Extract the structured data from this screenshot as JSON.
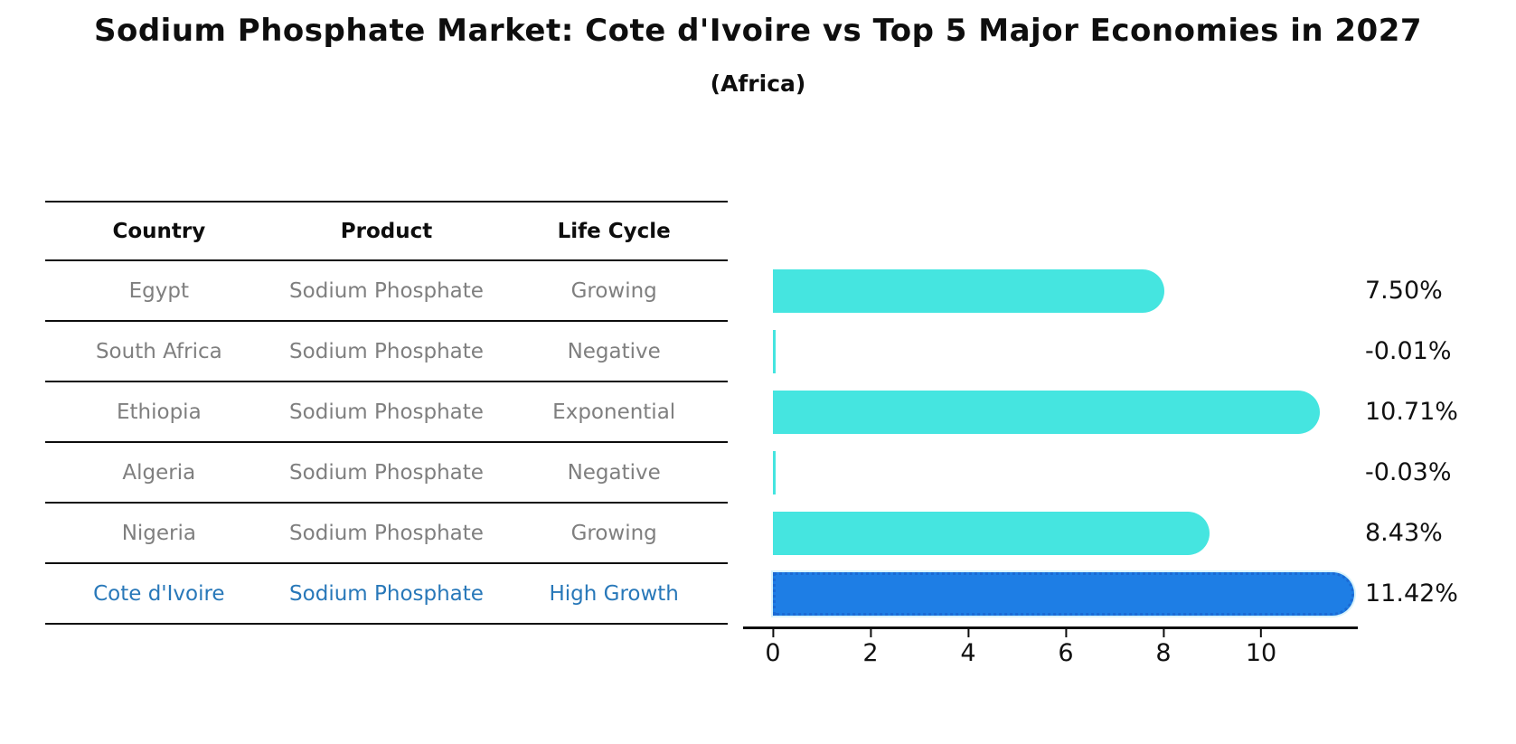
{
  "title": "Sodium Phosphate Market: Cote d'Ivoire vs Top 5 Major Economies in 2027",
  "subtitle": "(Africa)",
  "table": {
    "headers": [
      "Country",
      "Product",
      "Life Cycle"
    ],
    "rows": [
      {
        "country": "Egypt",
        "product": "Sodium Phosphate",
        "life_cycle": "Growing",
        "highlight": false
      },
      {
        "country": "South Africa",
        "product": "Sodium Phosphate",
        "life_cycle": "Negative",
        "highlight": false
      },
      {
        "country": "Ethiopia",
        "product": "Sodium Phosphate",
        "life_cycle": "Exponential",
        "highlight": false
      },
      {
        "country": "Algeria",
        "product": "Sodium Phosphate",
        "life_cycle": "Negative",
        "highlight": false
      },
      {
        "country": "Nigeria",
        "product": "Sodium Phosphate",
        "life_cycle": "Growing",
        "highlight": false
      },
      {
        "country": "Cote d'Ivoire",
        "product": "Sodium Phosphate",
        "life_cycle": "High Growth",
        "highlight": true
      }
    ]
  },
  "chart_data": {
    "type": "bar",
    "orientation": "horizontal",
    "title": "Sodium Phosphate Market: Cote d'Ivoire vs Top 5 Major Economies in 2027",
    "subtitle": "(Africa)",
    "categories": [
      "Egypt",
      "South Africa",
      "Ethiopia",
      "Algeria",
      "Nigeria",
      "Cote d'Ivoire"
    ],
    "values": [
      7.5,
      -0.01,
      10.71,
      -0.03,
      8.43,
      11.42
    ],
    "labels": [
      "7.50%",
      "-0.01%",
      "10.71%",
      "-0.03%",
      "8.43%",
      "11.42%"
    ],
    "units": "percent",
    "xticks": [
      "0",
      "2",
      "4",
      "6",
      "8",
      "10"
    ],
    "xlim": [
      0,
      12
    ],
    "grid": false,
    "legend": "none",
    "highlight_index": 5,
    "colors": {
      "bar": "#45E5E0",
      "highlight_bar": "#1E7EE5",
      "highlight_border": "#1A6AD4",
      "text_highlight": "#2878b9",
      "text_muted": "#7f7f7f",
      "text": "#111111"
    }
  }
}
